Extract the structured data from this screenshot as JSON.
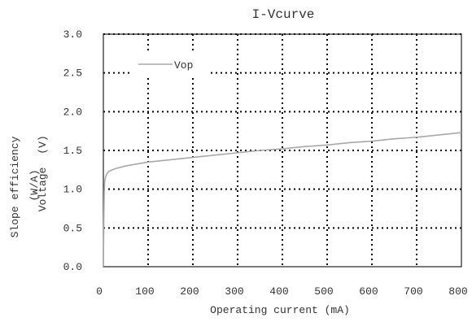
{
  "chart_data": {
    "type": "line",
    "title": "I-Vcurve",
    "xlabel": "Operating current (mA)",
    "ylabel_outer": "Slope efficiency",
    "ylabel_outer_unit": "(W/A)",
    "ylabel_inner": "Voltage",
    "ylabel_inner_unit": "(V)",
    "xlim": [
      0,
      800
    ],
    "ylim": [
      0,
      3.0
    ],
    "xticks": [
      "0",
      "100",
      "200",
      "300",
      "400",
      "500",
      "600",
      "700",
      "800"
    ],
    "yticks": [
      "0.0",
      "0.5",
      "1.0",
      "1.5",
      "2.0",
      "2.5",
      "3.0"
    ],
    "grid": true,
    "legend": "top-left",
    "series": [
      {
        "name": "Vop",
        "color": "#a8a8a8",
        "x": [
          0,
          1,
          2,
          3,
          5,
          8,
          12,
          20,
          30,
          50,
          80,
          100,
          150,
          200,
          250,
          300,
          350,
          400,
          450,
          500,
          550,
          600,
          650,
          700,
          750,
          800
        ],
        "y": [
          0,
          0.6,
          1.0,
          1.1,
          1.16,
          1.2,
          1.23,
          1.25,
          1.27,
          1.3,
          1.33,
          1.35,
          1.38,
          1.41,
          1.44,
          1.47,
          1.5,
          1.52,
          1.55,
          1.57,
          1.6,
          1.62,
          1.65,
          1.67,
          1.7,
          1.73
        ]
      }
    ]
  }
}
